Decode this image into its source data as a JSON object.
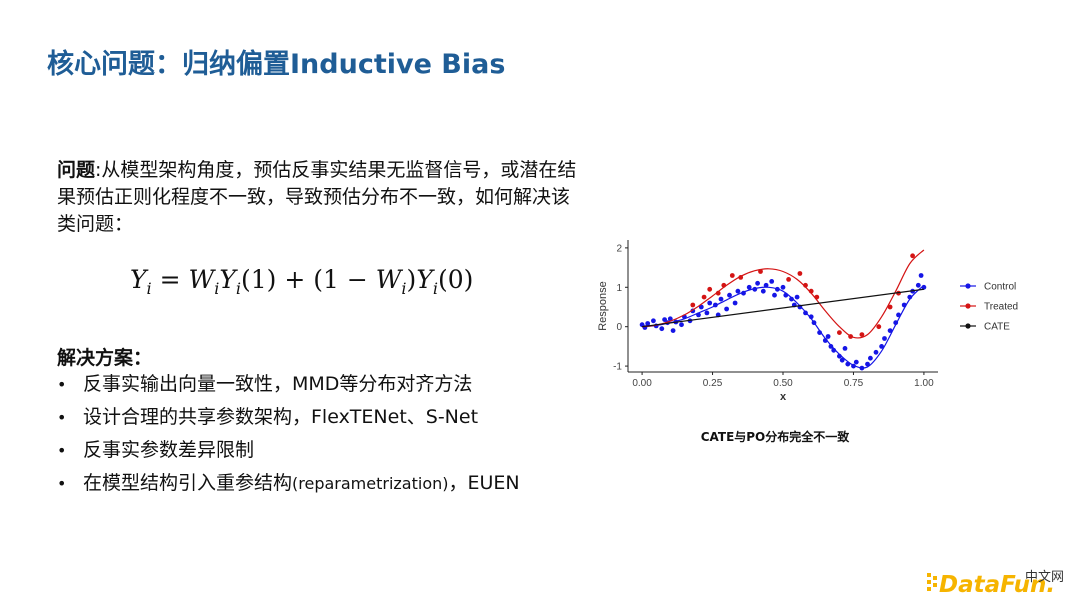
{
  "slide": {
    "title": "核心问题：归纳偏置Inductive Bias",
    "problem_label": "问题",
    "problem_text": ":从模型架构角度，预估反事实结果无监督信号，或潜在结果预估正则化程度不一致，导致预估分布不一致，如何解决该类问题：",
    "solution_heading": "解决方案：",
    "bullets": [
      "反事实输出向量一致性，MMD等分布对齐方法",
      "设计合理的共享参数架构，FlexTENet、S-Net",
      "反事实参数差异限制",
      "在模型结构引入重参结构"
    ],
    "bullet4_paren": "(reparametrization)",
    "bullet4_tail": "，EUEN",
    "figure_caption": "CATE与PO分布完全不一致",
    "logo_text": "DataFun.",
    "logo_cn": "中文网"
  },
  "chart_data": {
    "type": "scatter",
    "xlabel": "x",
    "ylabel": "Response",
    "xlim": [
      -0.05,
      1.05
    ],
    "ylim": [
      -1.15,
      2.2
    ],
    "xticks": [
      "0.00",
      "0.25",
      "0.50",
      "0.75",
      "1.00"
    ],
    "yticks": [
      "-1",
      "0",
      "1",
      "2"
    ],
    "grid": false,
    "legend_position": "right",
    "series": [
      {
        "name": "Control",
        "color": "#1515e6",
        "curve_x": [
          0,
          0.05,
          0.1,
          0.15,
          0.2,
          0.25,
          0.3,
          0.35,
          0.4,
          0.45,
          0.5,
          0.55,
          0.6,
          0.65,
          0.7,
          0.75,
          0.8,
          0.85,
          0.9,
          0.95,
          1.0
        ],
        "curve_y": [
          0,
          0.03,
          0.1,
          0.2,
          0.35,
          0.5,
          0.68,
          0.85,
          0.97,
          1.0,
          0.9,
          0.6,
          0.2,
          -0.3,
          -0.7,
          -0.98,
          -1.02,
          -0.62,
          0.05,
          0.7,
          1.05
        ],
        "points": [
          [
            0.0,
            0.05
          ],
          [
            0.01,
            -0.02
          ],
          [
            0.02,
            0.08
          ],
          [
            0.04,
            0.15
          ],
          [
            0.05,
            0.02
          ],
          [
            0.07,
            -0.05
          ],
          [
            0.09,
            0.1
          ],
          [
            0.1,
            0.2
          ],
          [
            0.11,
            -0.1
          ],
          [
            0.12,
            0.12
          ],
          [
            0.14,
            0.05
          ],
          [
            0.15,
            0.25
          ],
          [
            0.17,
            0.15
          ],
          [
            0.18,
            0.4
          ],
          [
            0.2,
            0.3
          ],
          [
            0.21,
            0.5
          ],
          [
            0.23,
            0.35
          ],
          [
            0.24,
            0.6
          ],
          [
            0.26,
            0.55
          ],
          [
            0.28,
            0.7
          ],
          [
            0.3,
            0.45
          ],
          [
            0.31,
            0.8
          ],
          [
            0.33,
            0.6
          ],
          [
            0.34,
            0.9
          ],
          [
            0.36,
            0.85
          ],
          [
            0.38,
            1.0
          ],
          [
            0.4,
            0.95
          ],
          [
            0.41,
            1.1
          ],
          [
            0.43,
            0.9
          ],
          [
            0.44,
            1.05
          ],
          [
            0.46,
            1.15
          ],
          [
            0.48,
            0.95
          ],
          [
            0.5,
            1.0
          ],
          [
            0.51,
            0.8
          ],
          [
            0.53,
            0.7
          ],
          [
            0.55,
            0.75
          ],
          [
            0.56,
            0.5
          ],
          [
            0.58,
            0.35
          ],
          [
            0.6,
            0.25
          ],
          [
            0.61,
            0.1
          ],
          [
            0.63,
            -0.15
          ],
          [
            0.65,
            -0.35
          ],
          [
            0.67,
            -0.5
          ],
          [
            0.68,
            -0.6
          ],
          [
            0.7,
            -0.75
          ],
          [
            0.71,
            -0.85
          ],
          [
            0.73,
            -0.95
          ],
          [
            0.75,
            -1.0
          ],
          [
            0.76,
            -0.9
          ],
          [
            0.78,
            -1.05
          ],
          [
            0.8,
            -0.95
          ],
          [
            0.81,
            -0.8
          ],
          [
            0.83,
            -0.65
          ],
          [
            0.85,
            -0.5
          ],
          [
            0.86,
            -0.3
          ],
          [
            0.88,
            -0.1
          ],
          [
            0.9,
            0.1
          ],
          [
            0.91,
            0.3
          ],
          [
            0.93,
            0.55
          ],
          [
            0.95,
            0.75
          ],
          [
            0.96,
            0.9
          ],
          [
            0.98,
            1.05
          ],
          [
            0.99,
            1.3
          ],
          [
            1.0,
            1.0
          ],
          [
            0.72,
            -0.55
          ],
          [
            0.66,
            -0.25
          ],
          [
            0.54,
            0.55
          ],
          [
            0.47,
            0.8
          ],
          [
            0.27,
            0.3
          ],
          [
            0.08,
            0.18
          ]
        ]
      },
      {
        "name": "Treated",
        "color": "#d41414",
        "curve_x": [
          0,
          0.05,
          0.1,
          0.15,
          0.2,
          0.25,
          0.3,
          0.35,
          0.4,
          0.45,
          0.5,
          0.55,
          0.6,
          0.65,
          0.7,
          0.75,
          0.8,
          0.85,
          0.9,
          0.95,
          1.0
        ],
        "curve_y": [
          0,
          0.04,
          0.14,
          0.3,
          0.52,
          0.78,
          1.05,
          1.28,
          1.42,
          1.47,
          1.4,
          1.2,
          0.85,
          0.4,
          0.0,
          -0.27,
          -0.2,
          0.25,
          0.9,
          1.6,
          1.95
        ],
        "points": [
          [
            0.18,
            0.55
          ],
          [
            0.22,
            0.75
          ],
          [
            0.24,
            0.95
          ],
          [
            0.27,
            0.85
          ],
          [
            0.29,
            1.05
          ],
          [
            0.32,
            1.3
          ],
          [
            0.35,
            1.25
          ],
          [
            0.42,
            1.4
          ],
          [
            0.52,
            1.2
          ],
          [
            0.56,
            1.35
          ],
          [
            0.58,
            1.05
          ],
          [
            0.6,
            0.9
          ],
          [
            0.62,
            0.75
          ],
          [
            0.7,
            -0.15
          ],
          [
            0.74,
            -0.25
          ],
          [
            0.78,
            -0.2
          ],
          [
            0.84,
            0.0
          ],
          [
            0.88,
            0.5
          ],
          [
            0.91,
            0.85
          ],
          [
            0.96,
            1.8
          ]
        ]
      },
      {
        "name": "CATE",
        "color": "#111111",
        "curve_x": [
          0,
          1.0
        ],
        "curve_y": [
          0,
          0.95
        ],
        "points": []
      }
    ]
  }
}
